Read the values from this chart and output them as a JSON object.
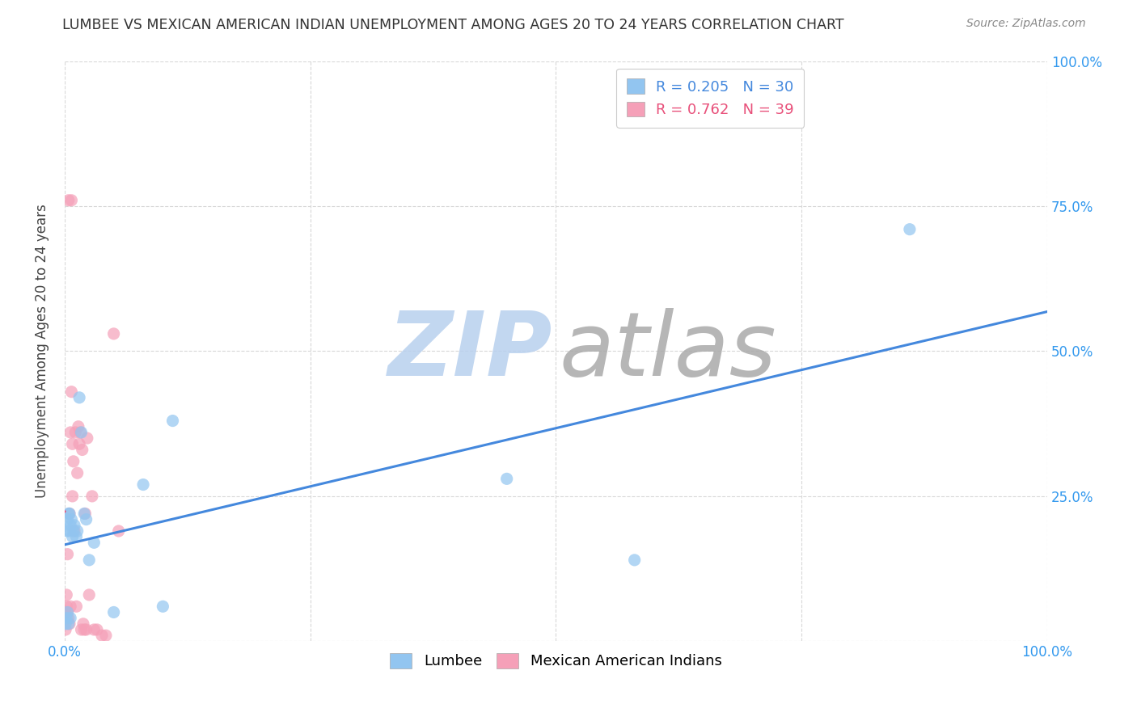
{
  "title": "LUMBEE VS MEXICAN AMERICAN INDIAN UNEMPLOYMENT AMONG AGES 20 TO 24 YEARS CORRELATION CHART",
  "source": "Source: ZipAtlas.com",
  "ylabel": "Unemployment Among Ages 20 to 24 years",
  "lumbee_R": 0.205,
  "lumbee_N": 30,
  "mexican_R": 0.762,
  "mexican_N": 39,
  "lumbee_color": "#92c5f0",
  "mexican_color": "#f5a0b8",
  "lumbee_line_color": "#4488dd",
  "mexican_line_color": "#e8507a",
  "lumbee_x": [
    0.001,
    0.002,
    0.002,
    0.003,
    0.003,
    0.004,
    0.004,
    0.005,
    0.005,
    0.006,
    0.006,
    0.007,
    0.008,
    0.009,
    0.01,
    0.012,
    0.013,
    0.015,
    0.017,
    0.02,
    0.022,
    0.025,
    0.03,
    0.05,
    0.08,
    0.1,
    0.11,
    0.45,
    0.58,
    0.86
  ],
  "lumbee_y": [
    0.03,
    0.04,
    0.19,
    0.05,
    0.21,
    0.03,
    0.22,
    0.19,
    0.22,
    0.04,
    0.2,
    0.21,
    0.18,
    0.19,
    0.2,
    0.18,
    0.19,
    0.42,
    0.36,
    0.22,
    0.21,
    0.14,
    0.17,
    0.05,
    0.27,
    0.06,
    0.38,
    0.28,
    0.14,
    0.71
  ],
  "mexican_x": [
    0.001,
    0.001,
    0.002,
    0.002,
    0.003,
    0.003,
    0.004,
    0.004,
    0.005,
    0.005,
    0.006,
    0.006,
    0.007,
    0.007,
    0.008,
    0.008,
    0.009,
    0.01,
    0.011,
    0.012,
    0.013,
    0.014,
    0.015,
    0.016,
    0.017,
    0.018,
    0.019,
    0.02,
    0.021,
    0.022,
    0.023,
    0.025,
    0.028,
    0.03,
    0.033,
    0.038,
    0.042,
    0.05,
    0.055
  ],
  "mexican_y": [
    0.02,
    0.05,
    0.06,
    0.08,
    0.05,
    0.15,
    0.04,
    0.76,
    0.03,
    0.22,
    0.06,
    0.36,
    0.43,
    0.76,
    0.25,
    0.34,
    0.31,
    0.19,
    0.36,
    0.06,
    0.29,
    0.37,
    0.34,
    0.36,
    0.02,
    0.33,
    0.03,
    0.02,
    0.22,
    0.02,
    0.35,
    0.08,
    0.25,
    0.02,
    0.02,
    0.01,
    0.01,
    0.53,
    0.19
  ],
  "xlim": [
    0.0,
    1.0
  ],
  "ylim": [
    0.0,
    1.0
  ],
  "xticks": [
    0.0,
    0.25,
    0.5,
    0.75,
    1.0
  ],
  "yticks": [
    0.0,
    0.25,
    0.5,
    0.75,
    1.0
  ],
  "background_color": "#ffffff",
  "grid_color": "#d8d8d8"
}
